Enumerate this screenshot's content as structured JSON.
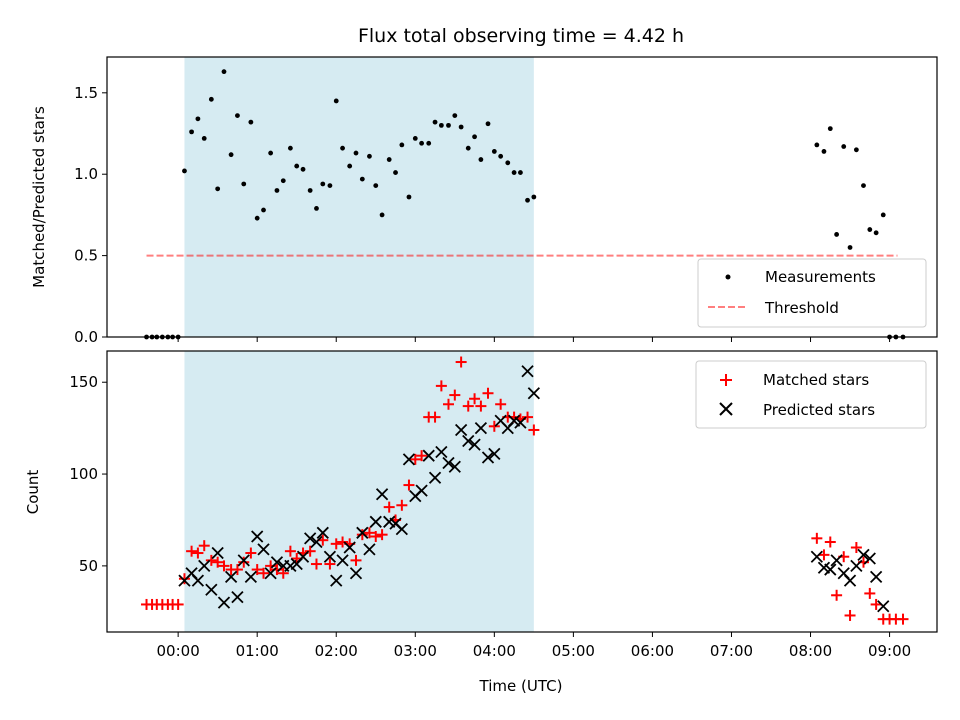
{
  "chart_data": {
    "type": "scatter",
    "title": "Flux total observing time = 4.42 h",
    "xlabel": "Time (UTC)",
    "x_unit": "hours",
    "xlim": [
      -0.9,
      9.6
    ],
    "x_ticks": [
      0,
      1,
      2,
      3,
      4,
      5,
      6,
      7,
      8,
      9
    ],
    "x_tick_labels": [
      "00:00",
      "01:00",
      "02:00",
      "03:00",
      "04:00",
      "05:00",
      "06:00",
      "07:00",
      "08:00",
      "09:00"
    ],
    "shaded_span": [
      0.08,
      4.5
    ],
    "colors": {
      "shade": "#add8e6",
      "threshold": "#ff0000",
      "matched": "#ff0000",
      "predicted": "#000000",
      "measurement": "#000000"
    },
    "panels": {
      "ratio": {
        "ylabel": "Matched/Predicted stars",
        "ylim": [
          0,
          1.72
        ],
        "y_ticks": [
          0.0,
          0.5,
          1.0,
          1.5
        ],
        "y_tick_labels": [
          "0.0",
          "0.5",
          "1.0",
          "1.5"
        ],
        "threshold": {
          "value": 0.5,
          "x_range": [
            -0.4,
            9.1
          ]
        },
        "legend": [
          "Measurements",
          "Threshold"
        ],
        "measurements": [
          [
            -0.4,
            0
          ],
          [
            -0.33,
            0
          ],
          [
            -0.27,
            0
          ],
          [
            -0.2,
            0
          ],
          [
            -0.13,
            0
          ],
          [
            -0.07,
            0
          ],
          [
            0.0,
            0
          ],
          [
            0.08,
            1.02
          ],
          [
            0.17,
            1.26
          ],
          [
            0.25,
            1.34
          ],
          [
            0.33,
            1.22
          ],
          [
            0.42,
            1.46
          ],
          [
            0.5,
            0.91
          ],
          [
            0.58,
            1.63
          ],
          [
            0.67,
            1.12
          ],
          [
            0.75,
            1.36
          ],
          [
            0.83,
            0.94
          ],
          [
            0.92,
            1.32
          ],
          [
            1.0,
            0.73
          ],
          [
            1.08,
            0.78
          ],
          [
            1.17,
            1.13
          ],
          [
            1.25,
            0.9
          ],
          [
            1.33,
            0.96
          ],
          [
            1.42,
            1.16
          ],
          [
            1.5,
            1.05
          ],
          [
            1.58,
            1.03
          ],
          [
            1.67,
            0.9
          ],
          [
            1.75,
            0.79
          ],
          [
            1.83,
            0.94
          ],
          [
            1.92,
            0.93
          ],
          [
            2.0,
            1.45
          ],
          [
            2.08,
            1.16
          ],
          [
            2.17,
            1.05
          ],
          [
            2.25,
            1.13
          ],
          [
            2.33,
            0.97
          ],
          [
            2.42,
            1.11
          ],
          [
            2.5,
            0.93
          ],
          [
            2.58,
            0.75
          ],
          [
            2.67,
            1.09
          ],
          [
            2.75,
            1.01
          ],
          [
            2.83,
            1.18
          ],
          [
            2.92,
            0.86
          ],
          [
            3.0,
            1.22
          ],
          [
            3.08,
            1.19
          ],
          [
            3.17,
            1.19
          ],
          [
            3.25,
            1.32
          ],
          [
            3.33,
            1.3
          ],
          [
            3.42,
            1.3
          ],
          [
            3.5,
            1.36
          ],
          [
            3.58,
            1.29
          ],
          [
            3.67,
            1.16
          ],
          [
            3.75,
            1.23
          ],
          [
            3.83,
            1.09
          ],
          [
            3.92,
            1.31
          ],
          [
            4.0,
            1.14
          ],
          [
            4.08,
            1.11
          ],
          [
            4.17,
            1.07
          ],
          [
            4.25,
            1.01
          ],
          [
            4.33,
            1.01
          ],
          [
            4.42,
            0.84
          ],
          [
            4.5,
            0.86
          ],
          [
            8.08,
            1.18
          ],
          [
            8.17,
            1.14
          ],
          [
            8.25,
            1.28
          ],
          [
            8.33,
            0.63
          ],
          [
            8.42,
            1.17
          ],
          [
            8.5,
            0.55
          ],
          [
            8.58,
            1.15
          ],
          [
            8.67,
            0.93
          ],
          [
            8.75,
            0.66
          ],
          [
            8.83,
            0.64
          ],
          [
            8.92,
            0.75
          ],
          [
            9.0,
            0
          ],
          [
            9.08,
            0
          ],
          [
            9.17,
            0
          ]
        ]
      },
      "counts": {
        "ylabel": "Count",
        "ylim": [
          14,
          167
        ],
        "y_ticks": [
          50,
          100,
          150
        ],
        "y_tick_labels": [
          "50",
          "100",
          "150"
        ],
        "legend": [
          "Matched stars",
          "Predicted stars"
        ],
        "matched": [
          [
            -0.4,
            29
          ],
          [
            -0.33,
            29
          ],
          [
            -0.27,
            29
          ],
          [
            -0.2,
            29
          ],
          [
            -0.13,
            29
          ],
          [
            -0.07,
            29
          ],
          [
            0.0,
            29
          ],
          [
            0.08,
            43
          ],
          [
            0.17,
            58
          ],
          [
            0.25,
            57
          ],
          [
            0.33,
            61
          ],
          [
            0.42,
            53
          ],
          [
            0.5,
            52
          ],
          [
            0.58,
            50
          ],
          [
            0.67,
            48
          ],
          [
            0.75,
            48
          ],
          [
            0.83,
            52
          ],
          [
            0.92,
            57
          ],
          [
            1.0,
            48
          ],
          [
            1.08,
            46
          ],
          [
            1.17,
            50
          ],
          [
            1.25,
            48
          ],
          [
            1.33,
            46
          ],
          [
            1.42,
            58
          ],
          [
            1.5,
            54
          ],
          [
            1.58,
            57
          ],
          [
            1.67,
            58
          ],
          [
            1.75,
            51
          ],
          [
            1.83,
            64
          ],
          [
            1.92,
            51
          ],
          [
            2.0,
            62
          ],
          [
            2.08,
            63
          ],
          [
            2.17,
            62
          ],
          [
            2.25,
            53
          ],
          [
            2.33,
            67
          ],
          [
            2.42,
            68
          ],
          [
            2.5,
            66
          ],
          [
            2.58,
            67
          ],
          [
            2.67,
            82
          ],
          [
            2.75,
            75
          ],
          [
            2.83,
            83
          ],
          [
            2.92,
            94
          ],
          [
            3.0,
            108
          ],
          [
            3.08,
            110
          ],
          [
            3.17,
            131
          ],
          [
            3.25,
            131
          ],
          [
            3.33,
            148
          ],
          [
            3.42,
            138
          ],
          [
            3.5,
            143
          ],
          [
            3.58,
            161
          ],
          [
            3.67,
            137
          ],
          [
            3.75,
            141
          ],
          [
            3.83,
            137
          ],
          [
            3.92,
            144
          ],
          [
            4.0,
            126
          ],
          [
            4.08,
            138
          ],
          [
            4.17,
            131
          ],
          [
            4.25,
            131
          ],
          [
            4.33,
            130
          ],
          [
            4.42,
            131
          ],
          [
            4.5,
            124
          ],
          [
            8.08,
            65
          ],
          [
            8.17,
            56
          ],
          [
            8.25,
            63
          ],
          [
            8.33,
            34
          ],
          [
            8.42,
            55
          ],
          [
            8.5,
            23
          ],
          [
            8.58,
            60
          ],
          [
            8.67,
            52
          ],
          [
            8.75,
            35
          ],
          [
            8.83,
            29
          ],
          [
            8.92,
            21
          ],
          [
            9.0,
            21
          ],
          [
            9.08,
            21
          ],
          [
            9.17,
            21
          ]
        ],
        "predicted": [
          [
            0.08,
            42
          ],
          [
            0.17,
            46
          ],
          [
            0.25,
            42
          ],
          [
            0.33,
            50
          ],
          [
            0.42,
            37
          ],
          [
            0.5,
            57
          ],
          [
            0.58,
            30
          ],
          [
            0.67,
            44
          ],
          [
            0.75,
            33
          ],
          [
            0.83,
            53
          ],
          [
            0.92,
            44
          ],
          [
            1.0,
            66
          ],
          [
            1.08,
            59
          ],
          [
            1.17,
            46
          ],
          [
            1.25,
            52
          ],
          [
            1.33,
            50
          ],
          [
            1.42,
            50
          ],
          [
            1.5,
            51
          ],
          [
            1.58,
            55
          ],
          [
            1.67,
            65
          ],
          [
            1.75,
            63
          ],
          [
            1.83,
            68
          ],
          [
            1.92,
            55
          ],
          [
            2.0,
            42
          ],
          [
            2.08,
            53
          ],
          [
            2.17,
            60
          ],
          [
            2.25,
            46
          ],
          [
            2.33,
            68
          ],
          [
            2.42,
            59
          ],
          [
            2.5,
            74
          ],
          [
            2.58,
            89
          ],
          [
            2.67,
            74
          ],
          [
            2.75,
            73
          ],
          [
            2.83,
            70
          ],
          [
            2.92,
            108
          ],
          [
            3.0,
            88
          ],
          [
            3.08,
            91
          ],
          [
            3.17,
            110
          ],
          [
            3.25,
            98
          ],
          [
            3.33,
            112
          ],
          [
            3.42,
            106
          ],
          [
            3.5,
            104
          ],
          [
            3.58,
            124
          ],
          [
            3.67,
            118
          ],
          [
            3.75,
            116
          ],
          [
            3.83,
            125
          ],
          [
            3.92,
            109
          ],
          [
            4.0,
            111
          ],
          [
            4.08,
            129
          ],
          [
            4.17,
            125
          ],
          [
            4.25,
            129
          ],
          [
            4.33,
            128
          ],
          [
            4.42,
            156
          ],
          [
            4.5,
            144
          ],
          [
            8.08,
            55
          ],
          [
            8.17,
            49
          ],
          [
            8.25,
            48
          ],
          [
            8.33,
            53
          ],
          [
            8.42,
            46
          ],
          [
            8.5,
            42
          ],
          [
            8.58,
            50
          ],
          [
            8.67,
            56
          ],
          [
            8.75,
            54
          ],
          [
            8.83,
            44
          ],
          [
            8.92,
            28
          ]
        ]
      }
    }
  }
}
